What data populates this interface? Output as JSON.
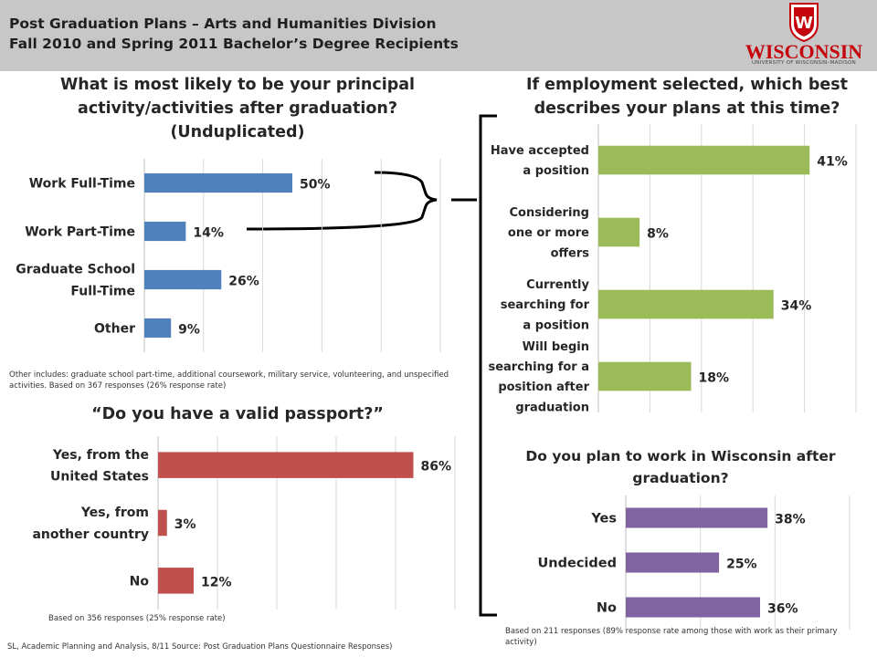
{
  "header": {
    "title_line1": "Post Graduation Plans – Arts and Humanities Division",
    "title_line2": "Fall 2010 and Spring 2011 Bachelor’s Degree Recipients"
  },
  "logo": {
    "word": "WISCONSIN",
    "sub": "UNIVERSITY OF WISCONSIN–MADISON",
    "crest_letter": "W",
    "color": "#c5050c"
  },
  "notes": {
    "principal": "Other includes: graduate school part-time, additional coursework, military service, volunteering, and unspecified activities. Based on 367 responses (26% response rate)",
    "passport": "Based on 356 responses (25% response rate)",
    "wisconsin": "Based on 211 responses (89% response rate among those with work as their primary activity)",
    "source": "SL, Academic Planning and Analysis, 8/11 Source: Post Graduation Plans Questionnaire Responses)"
  },
  "chart_data": [
    {
      "id": "principal",
      "type": "bar",
      "orientation": "horizontal",
      "title_lines": [
        "What is most likely to be your principal",
        "activity/activities after graduation?",
        "(Unduplicated)"
      ],
      "categories": [
        [
          "Work Full-Time"
        ],
        [
          "Work Part-Time"
        ],
        [
          "Graduate School",
          "Full-Time"
        ],
        [
          "Other"
        ]
      ],
      "values": [
        50,
        14,
        26,
        9
      ],
      "labels": [
        "50%",
        "14%",
        "26%",
        "9%"
      ],
      "xlim": [
        0,
        100
      ],
      "color": "#4f81bd",
      "grid": true
    },
    {
      "id": "employment",
      "type": "bar",
      "orientation": "horizontal",
      "title_lines": [
        "If employment selected, which best",
        "describes your plans at this time?"
      ],
      "categories": [
        [
          "Have accepted",
          "a position"
        ],
        [
          "Considering",
          "one or more",
          "offers"
        ],
        [
          "Currently",
          "searching for",
          "a position"
        ],
        [
          "Will begin",
          "searching for a",
          "position after",
          "graduation"
        ]
      ],
      "values": [
        41,
        8,
        34,
        18
      ],
      "labels": [
        "41%",
        "8%",
        "34%",
        "18%"
      ],
      "xlim": [
        0,
        50
      ],
      "color": "#9bbb59",
      "grid": true
    },
    {
      "id": "passport",
      "type": "bar",
      "orientation": "horizontal",
      "title_lines": [
        "“Do you have a valid passport?”"
      ],
      "categories": [
        [
          "Yes, from the",
          "United States"
        ],
        [
          "Yes, from",
          "another country"
        ],
        [
          "No"
        ]
      ],
      "values": [
        86,
        3,
        12
      ],
      "labels": [
        "86%",
        "3%",
        "12%"
      ],
      "xlim": [
        0,
        100
      ],
      "color": "#c0504d",
      "grid": true
    },
    {
      "id": "wisconsin",
      "type": "bar",
      "orientation": "horizontal",
      "title_lines": [
        "Do you plan to work in Wisconsin after",
        "graduation?"
      ],
      "categories": [
        [
          "Yes"
        ],
        [
          "Undecided"
        ],
        [
          "No"
        ]
      ],
      "values": [
        38,
        25,
        36
      ],
      "labels": [
        "38%",
        "25%",
        "36%"
      ],
      "xlim": [
        0,
        60
      ],
      "color": "#8064a2",
      "grid": true
    }
  ]
}
